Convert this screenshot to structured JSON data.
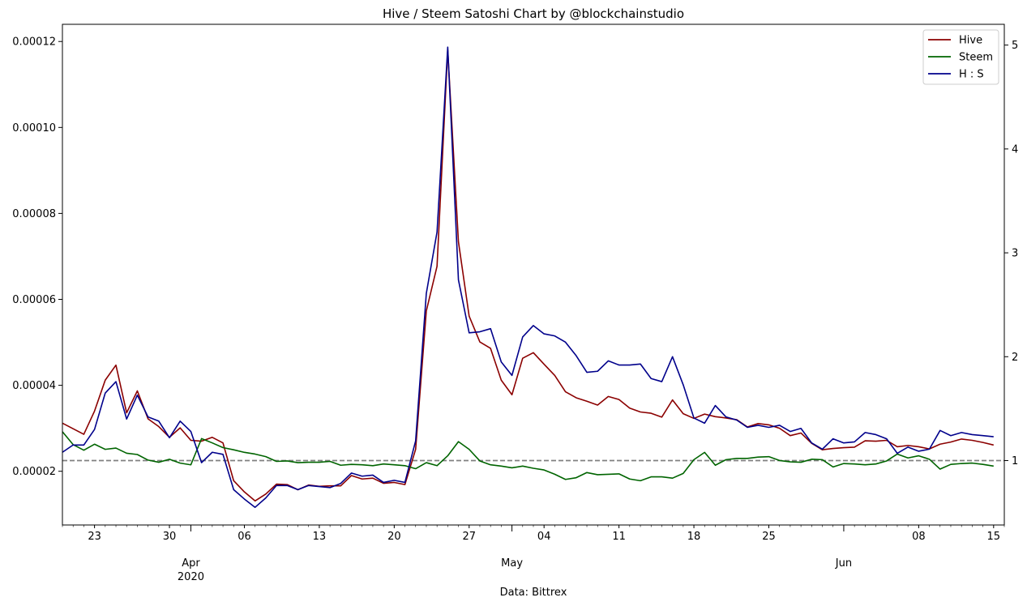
{
  "chart_data": {
    "type": "line",
    "title": "Hive / Steem Satoshi Chart by @blockchainstudio",
    "xlabel": "Data: Bittrex",
    "x_start": "2020-03-20",
    "x_end": "2020-06-16",
    "x_major_ticks": [
      {
        "date": "2020-04-01",
        "label": "Apr",
        "sublabel": "2020"
      },
      {
        "date": "2020-05-01",
        "label": "May",
        "sublabel": ""
      },
      {
        "date": "2020-06-01",
        "label": "Jun",
        "sublabel": ""
      }
    ],
    "x_minor_ticks": [
      {
        "date": "2020-03-23",
        "label": "23"
      },
      {
        "date": "2020-03-30",
        "label": "30"
      },
      {
        "date": "2020-04-06",
        "label": "06"
      },
      {
        "date": "2020-04-13",
        "label": "13"
      },
      {
        "date": "2020-04-20",
        "label": "20"
      },
      {
        "date": "2020-04-27",
        "label": "27"
      },
      {
        "date": "2020-05-04",
        "label": "04"
      },
      {
        "date": "2020-05-11",
        "label": "11"
      },
      {
        "date": "2020-05-18",
        "label": "18"
      },
      {
        "date": "2020-05-25",
        "label": "25"
      },
      {
        "date": "2020-06-08",
        "label": "08"
      },
      {
        "date": "2020-06-15",
        "label": "15"
      }
    ],
    "y_left": {
      "ylim": [
        7.5e-06,
        0.000124
      ],
      "ticks": [
        2e-05,
        4e-05,
        6e-05,
        8e-05,
        0.0001,
        0.00012
      ],
      "tick_labels": [
        "0.00002",
        "0.00004",
        "0.00006",
        "0.00008",
        "0.00010",
        "0.00012"
      ]
    },
    "y_right": {
      "ylim": [
        0.38,
        5.2
      ],
      "ticks": [
        1,
        2,
        3,
        4,
        5
      ],
      "tick_labels": [
        "1",
        "2",
        "3",
        "4",
        "5"
      ]
    },
    "reference_line": {
      "axis": "right",
      "y": 1,
      "color": "#808080",
      "style": "dashed"
    },
    "legend": {
      "position": "top-right"
    },
    "series": [
      {
        "name": "Hive",
        "axis": "left",
        "color": "#8b0000",
        "values": [
          3.12e-05,
          2.99e-05,
          2.86e-05,
          3.4e-05,
          4.12e-05,
          4.47e-05,
          3.36e-05,
          3.87e-05,
          3.22e-05,
          3.04e-05,
          2.79e-05,
          3.01e-05,
          2.72e-05,
          2.7e-05,
          2.79e-05,
          2.66e-05,
          1.78e-05,
          1.52e-05,
          1.31e-05,
          1.47e-05,
          1.7e-05,
          1.69e-05,
          1.57e-05,
          1.68e-05,
          1.65e-05,
          1.66e-05,
          1.66e-05,
          1.9e-05,
          1.82e-05,
          1.84e-05,
          1.72e-05,
          1.74e-05,
          1.69e-05,
          2.51e-05,
          5.73e-05,
          6.77e-05,
          0.000118,
          7.34e-05,
          5.61e-05,
          5.01e-05,
          4.86e-05,
          4.12e-05,
          3.78e-05,
          4.63e-05,
          4.76e-05,
          4.49e-05,
          4.23e-05,
          3.85e-05,
          3.71e-05,
          3.63e-05,
          3.54e-05,
          3.74e-05,
          3.67e-05,
          3.47e-05,
          3.38e-05,
          3.35e-05,
          3.26e-05,
          3.66e-05,
          3.34e-05,
          3.23e-05,
          3.33e-05,
          3.27e-05,
          3.24e-05,
          3.2e-05,
          3.03e-05,
          3.11e-05,
          3.08e-05,
          3e-05,
          2.83e-05,
          2.89e-05,
          2.65e-05,
          2.5e-05,
          2.53e-05,
          2.55e-05,
          2.56e-05,
          2.71e-05,
          2.7e-05,
          2.72e-05,
          2.57e-05,
          2.6e-05,
          2.57e-05,
          2.52e-05,
          2.63e-05,
          2.68e-05,
          2.75e-05,
          2.72e-05,
          2.67e-05,
          2.61e-05
        ]
      },
      {
        "name": "Steem",
        "axis": "left",
        "color": "#006400",
        "values": [
          2.92e-05,
          2.62e-05,
          2.49e-05,
          2.63e-05,
          2.51e-05,
          2.54e-05,
          2.42e-05,
          2.39e-05,
          2.26e-05,
          2.21e-05,
          2.28e-05,
          2.19e-05,
          2.15e-05,
          2.76e-05,
          2.66e-05,
          2.55e-05,
          2.5e-05,
          2.44e-05,
          2.4e-05,
          2.34e-05,
          2.23e-05,
          2.24e-05,
          2.2e-05,
          2.21e-05,
          2.21e-05,
          2.23e-05,
          2.14e-05,
          2.16e-05,
          2.15e-05,
          2.13e-05,
          2.17e-05,
          2.15e-05,
          2.13e-05,
          2.06e-05,
          2.2e-05,
          2.13e-05,
          2.36e-05,
          2.69e-05,
          2.51e-05,
          2.24e-05,
          2.15e-05,
          2.12e-05,
          2.08e-05,
          2.12e-05,
          2.07e-05,
          2.03e-05,
          1.93e-05,
          1.81e-05,
          1.85e-05,
          1.97e-05,
          1.92e-05,
          1.93e-05,
          1.94e-05,
          1.82e-05,
          1.78e-05,
          1.87e-05,
          1.87e-05,
          1.84e-05,
          1.95e-05,
          2.27e-05,
          2.44e-05,
          2.14e-05,
          2.27e-05,
          2.3e-05,
          2.3e-05,
          2.33e-05,
          2.34e-05,
          2.25e-05,
          2.22e-05,
          2.21e-05,
          2.28e-05,
          2.27e-05,
          2.1e-05,
          2.18e-05,
          2.17e-05,
          2.15e-05,
          2.17e-05,
          2.24e-05,
          2.4e-05,
          2.31e-05,
          2.36e-05,
          2.28e-05,
          2.05e-05,
          2.16e-05,
          2.18e-05,
          2.19e-05,
          2.16e-05,
          2.12e-05
        ]
      },
      {
        "name": "H : S",
        "axis": "right",
        "color": "#00008b",
        "values": [
          1.08,
          1.15,
          1.15,
          1.3,
          1.65,
          1.76,
          1.4,
          1.63,
          1.42,
          1.38,
          1.22,
          1.38,
          1.28,
          0.98,
          1.08,
          1.06,
          0.72,
          0.63,
          0.55,
          0.64,
          0.76,
          0.76,
          0.72,
          0.76,
          0.75,
          0.74,
          0.78,
          0.88,
          0.85,
          0.86,
          0.79,
          0.81,
          0.79,
          1.19,
          2.61,
          3.2,
          4.98,
          2.74,
          2.23,
          2.24,
          2.27,
          1.95,
          1.82,
          2.19,
          2.3,
          2.22,
          2.2,
          2.14,
          2.01,
          1.85,
          1.86,
          1.96,
          1.92,
          1.92,
          1.93,
          1.79,
          1.76,
          2.0,
          1.73,
          1.41,
          1.36,
          1.53,
          1.42,
          1.39,
          1.32,
          1.34,
          1.32,
          1.34,
          1.28,
          1.31,
          1.17,
          1.11,
          1.21,
          1.17,
          1.18,
          1.27,
          1.25,
          1.21,
          1.07,
          1.13,
          1.09,
          1.11,
          1.29,
          1.24,
          1.27,
          1.25,
          1.24,
          1.23
        ]
      }
    ]
  }
}
